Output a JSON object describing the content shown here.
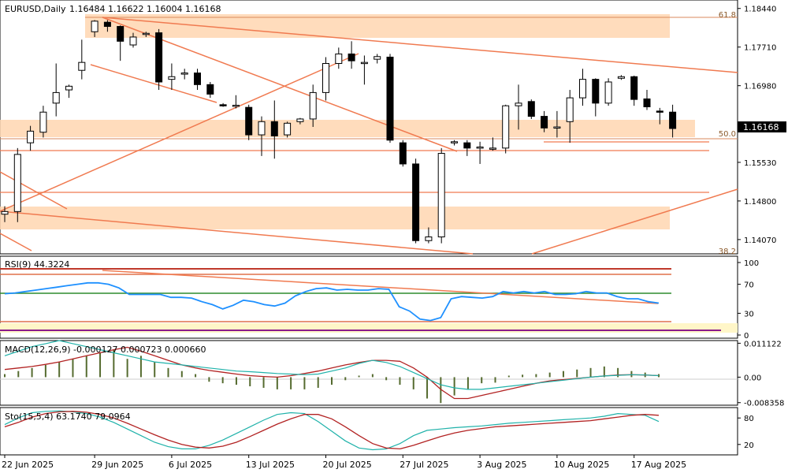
{
  "chart_data": [
    {
      "type": "candlestick",
      "title": "EURUSD,Daily",
      "header_values": "1.16484 1.16622 1.16004 1.16168",
      "price_axis": [
        "1.18440",
        "1.17710",
        "1.16980",
        "1.16250",
        "1.15530",
        "1.14800",
        "1.14070"
      ],
      "price_axis_values": [
        1.1844,
        1.1771,
        1.1698,
        1.1625,
        1.1553,
        1.148,
        1.1407
      ],
      "ylim": [
        1.138,
        1.186
      ],
      "current_price_label": "1.16168",
      "current_price": 1.16168,
      "fib_labels": [
        {
          "text": "61.8",
          "price": 1.1822
        },
        {
          "text": "50.0",
          "price": 1.1601
        },
        {
          "text": "38.2",
          "price": 1.1382
        }
      ],
      "x_tick_labels": [
        "22 Jun 2025",
        "29 Jun 2025",
        "6 Jul 2025",
        "13 Jul 2025",
        "20 Jul 2025",
        "27 Jul 2025",
        "3 Aug 2025",
        "10 Aug 2025",
        "17 Aug 2025"
      ],
      "x_tick_index": [
        0,
        7,
        13,
        19,
        25,
        31,
        37,
        43,
        49
      ],
      "candles": [
        {
          "o": 1.1455,
          "h": 1.147,
          "l": 1.144,
          "c": 1.146
        },
        {
          "o": 1.146,
          "h": 1.158,
          "l": 1.144,
          "c": 1.1568
        },
        {
          "o": 1.159,
          "h": 1.1622,
          "l": 1.1575,
          "c": 1.1612
        },
        {
          "o": 1.161,
          "h": 1.166,
          "l": 1.16,
          "c": 1.1648
        },
        {
          "o": 1.1665,
          "h": 1.174,
          "l": 1.164,
          "c": 1.1685
        },
        {
          "o": 1.169,
          "h": 1.17,
          "l": 1.1675,
          "c": 1.1697
        },
        {
          "o": 1.1727,
          "h": 1.1785,
          "l": 1.171,
          "c": 1.1742
        },
        {
          "o": 1.18,
          "h": 1.1822,
          "l": 1.179,
          "c": 1.182
        },
        {
          "o": 1.1818,
          "h": 1.1822,
          "l": 1.18,
          "c": 1.181
        },
        {
          "o": 1.181,
          "h": 1.1812,
          "l": 1.1745,
          "c": 1.1782
        },
        {
          "o": 1.1775,
          "h": 1.1798,
          "l": 1.177,
          "c": 1.179
        },
        {
          "o": 1.1795,
          "h": 1.18,
          "l": 1.179,
          "c": 1.1797
        },
        {
          "o": 1.1798,
          "h": 1.1805,
          "l": 1.169,
          "c": 1.1705
        },
        {
          "o": 1.171,
          "h": 1.174,
          "l": 1.169,
          "c": 1.1715
        },
        {
          "o": 1.172,
          "h": 1.173,
          "l": 1.171,
          "c": 1.1722
        },
        {
          "o": 1.1722,
          "h": 1.173,
          "l": 1.169,
          "c": 1.17
        },
        {
          "o": 1.17,
          "h": 1.1705,
          "l": 1.1675,
          "c": 1.1682
        },
        {
          "o": 1.1662,
          "h": 1.1665,
          "l": 1.1658,
          "c": 1.166
        },
        {
          "o": 1.166,
          "h": 1.168,
          "l": 1.1655,
          "c": 1.1661
        },
        {
          "o": 1.1657,
          "h": 1.1662,
          "l": 1.1595,
          "c": 1.1605
        },
        {
          "o": 1.1605,
          "h": 1.164,
          "l": 1.1565,
          "c": 1.163
        },
        {
          "o": 1.163,
          "h": 1.167,
          "l": 1.156,
          "c": 1.1603
        },
        {
          "o": 1.1605,
          "h": 1.163,
          "l": 1.16,
          "c": 1.1627
        },
        {
          "o": 1.163,
          "h": 1.1637,
          "l": 1.1625,
          "c": 1.1635
        },
        {
          "o": 1.1635,
          "h": 1.17,
          "l": 1.162,
          "c": 1.1685
        },
        {
          "o": 1.1685,
          "h": 1.1752,
          "l": 1.167,
          "c": 1.174
        },
        {
          "o": 1.174,
          "h": 1.177,
          "l": 1.173,
          "c": 1.1758
        },
        {
          "o": 1.1758,
          "h": 1.1782,
          "l": 1.173,
          "c": 1.1745
        },
        {
          "o": 1.1742,
          "h": 1.1755,
          "l": 1.17,
          "c": 1.1742
        },
        {
          "o": 1.1748,
          "h": 1.1758,
          "l": 1.174,
          "c": 1.1753
        },
        {
          "o": 1.1752,
          "h": 1.1758,
          "l": 1.159,
          "c": 1.1595
        },
        {
          "o": 1.159,
          "h": 1.1595,
          "l": 1.1545,
          "c": 1.155
        },
        {
          "o": 1.155,
          "h": 1.156,
          "l": 1.14,
          "c": 1.1405
        },
        {
          "o": 1.1405,
          "h": 1.143,
          "l": 1.14,
          "c": 1.1412
        },
        {
          "o": 1.1412,
          "h": 1.158,
          "l": 1.14,
          "c": 1.157
        },
        {
          "o": 1.159,
          "h": 1.1595,
          "l": 1.1585,
          "c": 1.1592
        },
        {
          "o": 1.159,
          "h": 1.1595,
          "l": 1.1565,
          "c": 1.158
        },
        {
          "o": 1.158,
          "h": 1.1592,
          "l": 1.155,
          "c": 1.1582
        },
        {
          "o": 1.158,
          "h": 1.16,
          "l": 1.1575,
          "c": 1.158
        },
        {
          "o": 1.158,
          "h": 1.1662,
          "l": 1.157,
          "c": 1.166
        },
        {
          "o": 1.166,
          "h": 1.17,
          "l": 1.1615,
          "c": 1.1665
        },
        {
          "o": 1.1668,
          "h": 1.1672,
          "l": 1.1635,
          "c": 1.164
        },
        {
          "o": 1.164,
          "h": 1.165,
          "l": 1.161,
          "c": 1.1618
        },
        {
          "o": 1.1618,
          "h": 1.165,
          "l": 1.16,
          "c": 1.162
        },
        {
          "o": 1.163,
          "h": 1.169,
          "l": 1.159,
          "c": 1.1675
        },
        {
          "o": 1.1675,
          "h": 1.173,
          "l": 1.166,
          "c": 1.171
        },
        {
          "o": 1.171,
          "h": 1.1712,
          "l": 1.164,
          "c": 1.1665
        },
        {
          "o": 1.1665,
          "h": 1.1712,
          "l": 1.166,
          "c": 1.1705
        },
        {
          "o": 1.1712,
          "h": 1.1718,
          "l": 1.1709,
          "c": 1.1715
        },
        {
          "o": 1.1715,
          "h": 1.1717,
          "l": 1.166,
          "c": 1.1672
        },
        {
          "o": 1.1673,
          "h": 1.169,
          "l": 1.1652,
          "c": 1.1658
        },
        {
          "o": 1.165,
          "h": 1.1656,
          "l": 1.1625,
          "c": 1.1648
        },
        {
          "o": 1.1648,
          "h": 1.1662,
          "l": 1.16,
          "c": 1.1617
        }
      ]
    },
    {
      "type": "line",
      "title": "RSI(9) 44.3224",
      "ylim": [
        0,
        100
      ],
      "y_tick_labels": [
        "100",
        "70",
        "30",
        "0"
      ],
      "y_tick_values": [
        100,
        70,
        30,
        0
      ],
      "levels": [
        85,
        80,
        55,
        22,
        10
      ],
      "values": [
        57,
        58,
        60,
        62,
        64,
        66,
        68,
        70,
        72,
        72,
        70,
        65,
        56,
        56,
        56,
        56,
        52,
        52,
        51,
        46,
        42,
        36,
        41,
        48,
        46,
        42,
        40,
        44,
        54,
        60,
        64,
        65,
        62,
        63,
        62,
        62,
        64,
        63,
        39,
        33,
        22,
        20,
        24,
        50,
        53,
        52,
        51,
        53,
        60,
        58,
        60,
        58,
        60,
        56,
        56,
        57,
        60,
        58,
        58,
        53,
        50,
        50,
        46,
        44
      ]
    },
    {
      "type": "bar-line",
      "title": "MACD(12,26,9) -0.000127 0.000723 0.000660",
      "y_tick_labels": [
        "0.011122",
        "0.00",
        "-0.008358"
      ],
      "y_tick_values": [
        0.011122,
        0,
        -0.008358
      ],
      "ylim": [
        -0.0092,
        0.012
      ],
      "histogram": [
        0.001,
        0.002,
        0.003,
        0.004,
        0.005,
        0.006,
        0.007,
        0.008,
        0.009,
        0.006,
        0.007,
        0.005,
        0.003,
        0.002,
        0.001,
        -0.0015,
        -0.002,
        -0.0025,
        -0.003,
        -0.0035,
        -0.004,
        -0.004,
        -0.004,
        -0.0035,
        -0.0025,
        -0.001,
        0.0005,
        0.001,
        -0.001,
        -0.0025,
        -0.004,
        -0.007,
        -0.0085,
        -0.006,
        -0.004,
        -0.002,
        -0.0018,
        0.0005,
        0.0008,
        0.001,
        0.0015,
        0.002,
        0.0025,
        0.003,
        0.0035,
        0.003,
        0.002,
        0.0015,
        0.001
      ],
      "signal": [
        0.0025,
        0.003,
        0.0035,
        0.0042,
        0.005,
        0.006,
        0.007,
        0.008,
        0.009,
        0.0098,
        0.0085,
        0.007,
        0.0055,
        0.004,
        0.003,
        0.0022,
        0.0016,
        0.001,
        0.0005,
        0.0002,
        0.0,
        0.0005,
        0.0012,
        0.002,
        0.003,
        0.004,
        0.0048,
        0.0055,
        0.0055,
        0.0052,
        0.003,
        0.0,
        -0.004,
        -0.007,
        -0.007,
        -0.006,
        -0.005,
        -0.004,
        -0.003,
        -0.002,
        -0.0012,
        -0.0008,
        -0.0004,
        0.0,
        0.0004,
        0.0007,
        0.0008,
        0.0007,
        0.0005
      ],
      "macd": [
        0.007,
        0.0085,
        0.01,
        0.011,
        0.012,
        0.011,
        0.01,
        0.009,
        0.008,
        0.007,
        0.006,
        0.005,
        0.0045,
        0.004,
        0.0035,
        0.003,
        0.0025,
        0.002,
        0.0018,
        0.0015,
        0.0012,
        0.001,
        0.0008,
        0.001,
        0.002,
        0.003,
        0.0045,
        0.0055,
        0.0048,
        0.0035,
        0.0015,
        -0.0005,
        -0.0025,
        -0.0035,
        -0.004,
        -0.004,
        -0.0035,
        -0.003,
        -0.0025,
        -0.002,
        -0.0015,
        -0.001,
        -0.0005,
        0.0,
        0.0004,
        0.0006,
        0.0008,
        0.0007,
        0.0005
      ]
    },
    {
      "type": "line",
      "title": "Sto(15,5,4) 63.1740 79.0964",
      "ylim": [
        0,
        100
      ],
      "y_tick_labels": [
        "80",
        "20"
      ],
      "y_tick_values": [
        80,
        20
      ],
      "k": [
        65,
        80,
        92,
        95,
        96,
        94,
        90,
        82,
        70,
        55,
        40,
        25,
        15,
        10,
        10,
        18,
        30,
        45,
        60,
        75,
        88,
        92,
        90,
        72,
        50,
        28,
        12,
        8,
        10,
        22,
        40,
        52,
        55,
        58,
        60,
        62,
        65,
        68,
        70,
        72,
        74,
        76,
        78,
        80,
        84,
        90,
        88,
        86,
        72
      ],
      "d": [
        60,
        70,
        82,
        90,
        94,
        95,
        93,
        88,
        80,
        68,
        55,
        42,
        30,
        20,
        14,
        12,
        16,
        25,
        38,
        52,
        66,
        78,
        88,
        88,
        78,
        60,
        40,
        22,
        12,
        10,
        18,
        28,
        38,
        46,
        52,
        56,
        60,
        62,
        64,
        66,
        68,
        70,
        72,
        74,
        78,
        82,
        86,
        88,
        86
      ]
    }
  ]
}
